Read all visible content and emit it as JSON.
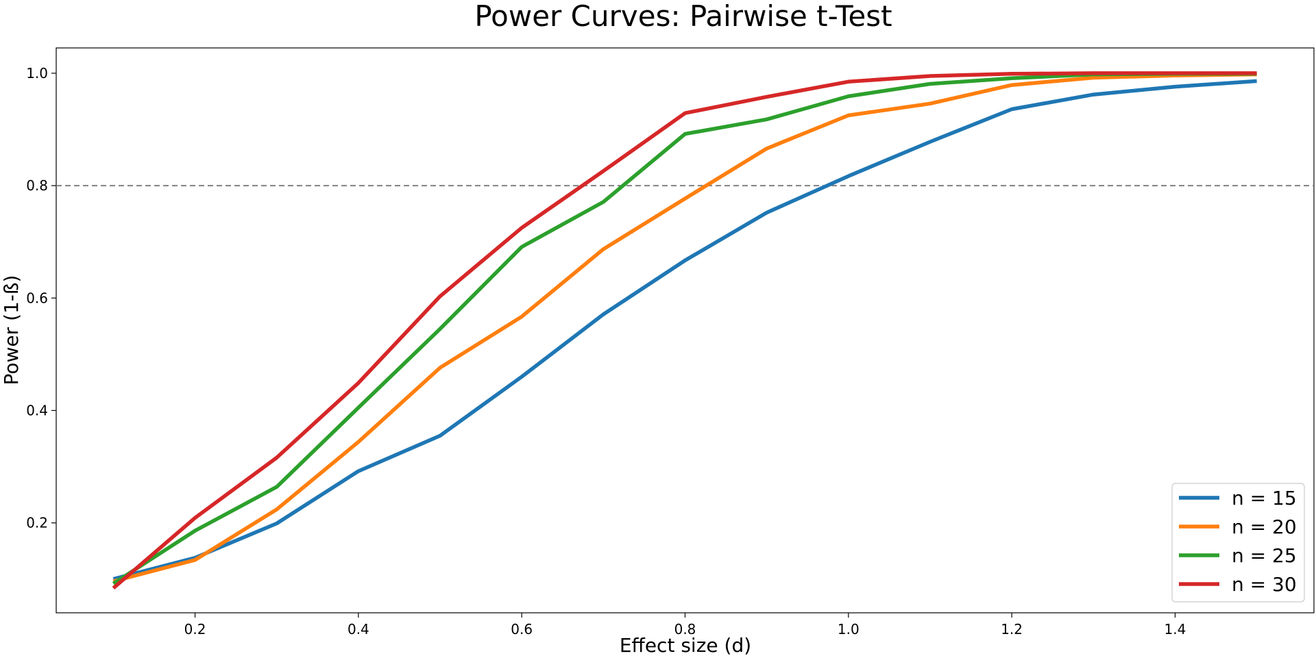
{
  "chart_data": {
    "type": "line",
    "title": "Power Curves: Pairwise t-Test",
    "xlabel": "Effect size (d)",
    "ylabel": "Power (1-ß)",
    "xlim": [
      0.03,
      1.57
    ],
    "ylim": [
      0.04,
      1.045
    ],
    "x_ticks": [
      "0.2",
      "0.4",
      "0.6",
      "0.8",
      "1.0",
      "1.2",
      "1.4"
    ],
    "y_ticks": [
      "0.2",
      "0.4",
      "0.6",
      "0.8",
      "1.0"
    ],
    "reference_line": {
      "y": 0.8,
      "style": "dashed",
      "color": "#808080"
    },
    "legend_position": "bottom-right",
    "grid": false,
    "x": [
      0.1,
      0.2,
      0.3,
      0.4,
      0.5,
      0.6,
      0.7,
      0.8,
      0.9,
      1.0,
      1.1,
      1.2,
      1.3,
      1.4,
      1.5
    ],
    "series": [
      {
        "name": "n = 15",
        "color": "#1f77b4",
        "values": [
          0.1,
          0.138,
          0.199,
          0.292,
          0.355,
          0.46,
          0.571,
          0.667,
          0.752,
          0.817,
          0.878,
          0.936,
          0.962,
          0.976,
          0.986
        ]
      },
      {
        "name": "n = 20",
        "color": "#ff7f0e",
        "values": [
          0.096,
          0.134,
          0.224,
          0.344,
          0.476,
          0.567,
          0.687,
          0.777,
          0.866,
          0.925,
          0.946,
          0.979,
          0.992,
          0.996,
          0.998
        ]
      },
      {
        "name": "n = 25",
        "color": "#2ca02c",
        "values": [
          0.092,
          0.186,
          0.264,
          0.405,
          0.545,
          0.691,
          0.771,
          0.892,
          0.918,
          0.959,
          0.981,
          0.991,
          0.998,
          0.999,
          0.999
        ]
      },
      {
        "name": "n = 30",
        "color": "#d62728",
        "values": [
          0.084,
          0.209,
          0.316,
          0.449,
          0.603,
          0.725,
          0.826,
          0.929,
          0.958,
          0.985,
          0.995,
          0.999,
          1.0,
          1.0,
          1.0
        ]
      }
    ]
  }
}
